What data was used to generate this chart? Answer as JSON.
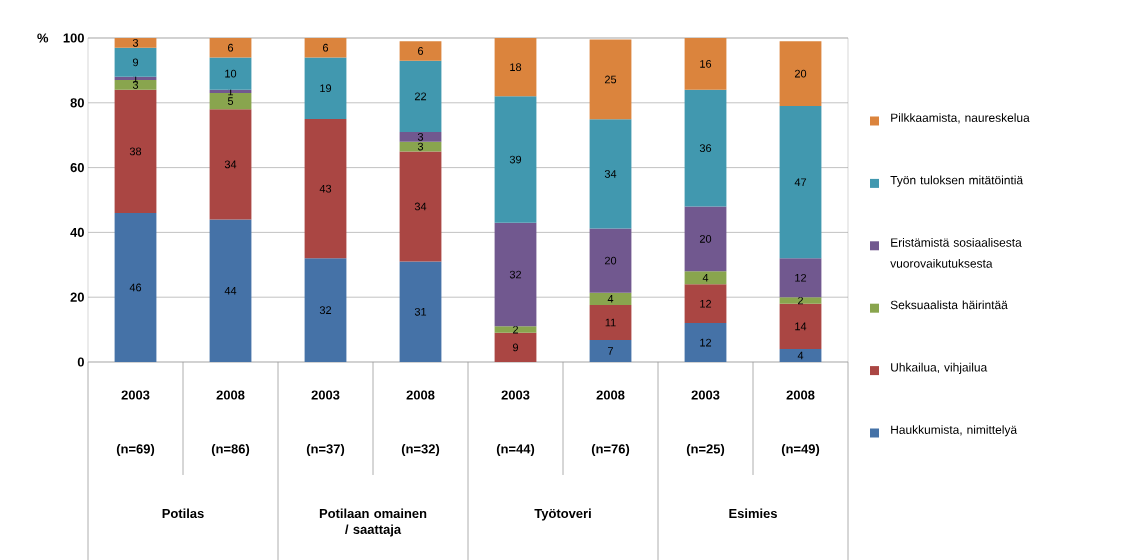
{
  "chart_data": {
    "type": "bar",
    "stacked": true,
    "grid": true,
    "legend": "right",
    "ylabel": "%",
    "categories": [
      "2003",
      "2008",
      "2003",
      "2008",
      "2003",
      "2008",
      "2003",
      "2008"
    ],
    "ylim": [
      0,
      100
    ],
    "yticks": [
      0,
      20,
      40,
      60,
      80,
      100
    ],
    "series": [
      {
        "name": "Haukkumista, nimittelyä",
        "color": "#4572a7",
        "values": [
          46,
          44,
          32,
          31,
          null,
          6.8,
          12,
          4
        ],
        "value_labels": [
          "46",
          "44",
          "32",
          "31",
          null,
          "7",
          "12",
          "4"
        ]
      },
      {
        "name": "Uhkailua, vihjailua",
        "color": "#aa4643",
        "values": [
          38,
          34,
          43,
          34,
          9,
          10.8,
          12,
          14
        ],
        "value_labels": [
          "38",
          "34",
          "43",
          "34",
          "9",
          "11",
          "12",
          "14"
        ]
      },
      {
        "name": "Seksuaalista häirintää",
        "color": "#89a54e",
        "values": [
          3,
          5,
          null,
          3,
          2,
          3.8,
          4,
          2
        ],
        "value_labels": [
          "3",
          "5",
          null,
          "3",
          "2",
          "4",
          "4",
          "2"
        ]
      },
      {
        "name": "Eristämistä sosiaalisesta vuorovaikutuksesta",
        "color": "#71588f",
        "values": [
          1,
          1,
          null,
          3,
          32,
          19.8,
          20,
          12
        ],
        "value_labels": [
          "1",
          "1",
          null,
          "3",
          "32",
          "20",
          "20",
          "12"
        ]
      },
      {
        "name": "Työn tuloksen mitätöintiä",
        "color": "#4198af",
        "values": [
          9,
          10,
          19,
          22,
          39,
          33.7,
          36,
          47
        ],
        "value_labels": [
          "9",
          "10",
          "19",
          "22",
          "39",
          "34",
          "36",
          "47"
        ]
      },
      {
        "name": "Pilkkaamista, naureskelua",
        "color": "#db843d",
        "values": [
          3,
          6,
          6,
          6,
          18,
          24.6,
          16,
          20
        ],
        "value_labels": [
          "3",
          "6",
          "6",
          "6",
          "18",
          "25",
          "16",
          "20"
        ]
      }
    ],
    "annotations": [
      "(n=69)",
      "(n=86)",
      "(n=37)",
      "(n=32)",
      "(n=44)",
      "(n=76)",
      "(n=25)",
      "(n=49)",
      "Potilas",
      "Potilaan omainen / saattaja",
      "Työtoveri",
      "Esimies"
    ]
  }
}
